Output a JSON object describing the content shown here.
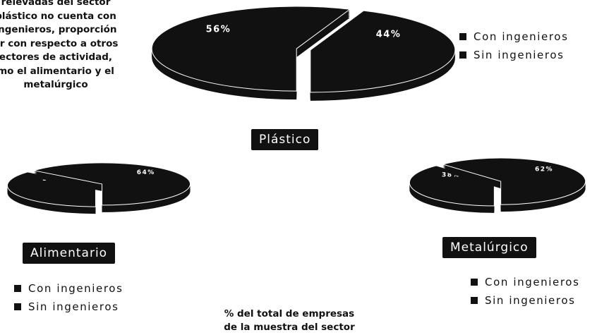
{
  "intro_lines": [
    "relevadas del sector",
    "plástico no cuenta con",
    "ingenieros, proporción",
    "or con respecto a otros",
    "ectores de actividad,",
    "mo el alimentario y el",
    "metalúrgico"
  ],
  "footnote_lines": [
    "% del total de empresas",
    "de la muestra del sector"
  ],
  "legend_labels": [
    "Con ingenieros",
    "Sin ingenieros"
  ],
  "colors": {
    "slice": "#111111",
    "text_on_dark": "#ffffff",
    "swatch": "#111111"
  },
  "chart_data": [
    {
      "type": "pie",
      "title": "Plástico",
      "slices": [
        {
          "label": "Con ingenieros",
          "value": 56,
          "display": "56%"
        },
        {
          "label": "Sin ingenieros",
          "value": 44,
          "display": "44%"
        }
      ],
      "legend_placement": "right"
    },
    {
      "type": "pie",
      "title": "Alimentario",
      "slices": [
        {
          "label": "Con ingenieros",
          "value": 36,
          "display": "36%"
        },
        {
          "label": "Sin ingenieros",
          "value": 64,
          "display": "64%"
        }
      ],
      "legend_placement": "bottom"
    },
    {
      "type": "pie",
      "title": "Metalúrgico",
      "slices": [
        {
          "label": "Con ingenieros",
          "value": 38,
          "display": "38%"
        },
        {
          "label": "Sin ingenieros",
          "value": 62,
          "display": "62%"
        }
      ],
      "legend_placement": "bottom"
    }
  ]
}
